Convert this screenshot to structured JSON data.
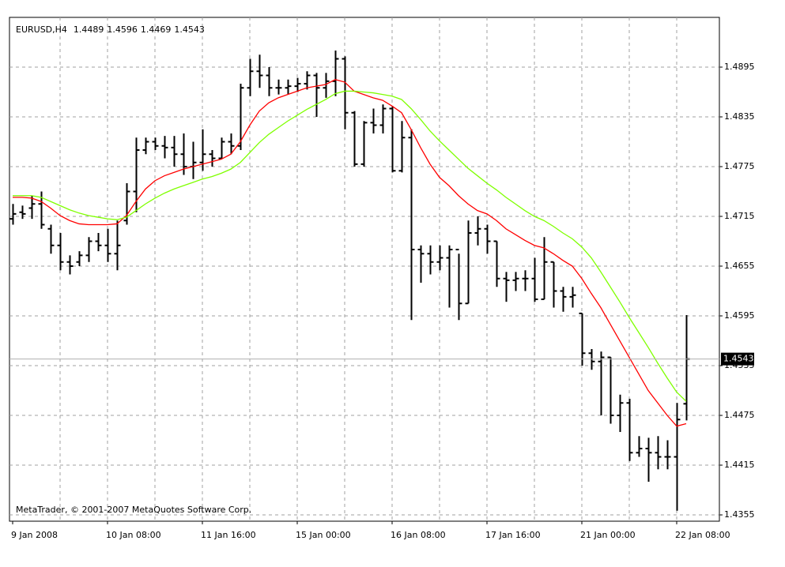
{
  "chart_data": {
    "type": "ohlc",
    "symbol": "EURUSD,H4",
    "footer": "MetaTrader, © 2001-2007 MetaQuotes Software Corp.",
    "categories": [
      "9 Jan 2008",
      null,
      null,
      null,
      null,
      null,
      null,
      null,
      null,
      null,
      "10 Jan 08:00",
      null,
      null,
      null,
      null,
      null,
      null,
      null,
      null,
      null,
      "11 Jan 16:00",
      null,
      null,
      null,
      null,
      null,
      null,
      null,
      null,
      null,
      "15 Jan 00:00",
      null,
      null,
      null,
      null,
      null,
      null,
      null,
      null,
      null,
      "16 Jan 08:00",
      null,
      null,
      null,
      null,
      null,
      null,
      null,
      null,
      null,
      "17 Jan 16:00",
      null,
      null,
      null,
      null,
      null,
      null,
      null,
      null,
      null,
      "21 Jan 00:00",
      null,
      null,
      null,
      null,
      null,
      null,
      null,
      null,
      null,
      "22 Jan 08:00",
      null
    ],
    "open": [
      1.4712,
      1.472,
      1.4725,
      1.473,
      1.47,
      1.468,
      1.466,
      1.466,
      1.4668,
      1.4685,
      1.468,
      1.467,
      1.471,
      1.4745,
      1.4795,
      1.4805,
      1.48,
      1.4798,
      1.479,
      1.4775,
      1.478,
      1.479,
      1.4785,
      1.4805,
      1.48,
      1.487,
      1.489,
      1.4885,
      1.487,
      1.487,
      1.4872,
      1.4875,
      1.4885,
      1.487,
      1.4878,
      1.4905,
      1.484,
      1.4778,
      1.4828,
      1.4825,
      1.4845,
      1.477,
      1.481,
      1.4675,
      1.467,
      1.466,
      1.4665,
      1.4675,
      1.461,
      1.4695,
      1.47,
      1.4685,
      1.464,
      1.4638,
      1.464,
      1.464,
      1.4615,
      1.466,
      1.4625,
      1.4618,
      1.4598,
      1.455,
      1.454,
      1.4545,
      1.4475,
      1.449,
      1.443,
      1.4435,
      1.443,
      1.4425,
      1.4425,
      1.4489
    ],
    "high": [
      1.473,
      1.4728,
      1.474,
      1.4745,
      1.4705,
      1.4695,
      1.4668,
      1.4673,
      1.469,
      1.4695,
      1.47,
      1.471,
      1.4755,
      1.481,
      1.481,
      1.481,
      1.4812,
      1.4812,
      1.4815,
      1.4805,
      1.482,
      1.4795,
      1.481,
      1.4815,
      1.4875,
      1.4905,
      1.491,
      1.4895,
      1.488,
      1.488,
      1.4882,
      1.489,
      1.4888,
      1.4888,
      1.4915,
      1.4908,
      1.4842,
      1.483,
      1.4845,
      1.485,
      1.4848,
      1.483,
      1.482,
      1.468,
      1.468,
      1.468,
      1.468,
      1.467,
      1.471,
      1.4715,
      1.4705,
      1.4685,
      1.4648,
      1.4648,
      1.465,
      1.4665,
      1.469,
      1.466,
      1.463,
      1.463,
      1.4598,
      1.4555,
      1.4552,
      1.4545,
      1.45,
      1.4495,
      1.445,
      1.4448,
      1.445,
      1.4445,
      1.449,
      1.4596
    ],
    "low": [
      1.4705,
      1.4712,
      1.4712,
      1.47,
      1.467,
      1.465,
      1.4645,
      1.4655,
      1.466,
      1.4673,
      1.466,
      1.465,
      1.4705,
      1.472,
      1.479,
      1.4795,
      1.4785,
      1.4775,
      1.4765,
      1.476,
      1.477,
      1.4775,
      1.4785,
      1.479,
      1.4795,
      1.486,
      1.487,
      1.486,
      1.4862,
      1.4862,
      1.4865,
      1.4868,
      1.4835,
      1.4858,
      1.486,
      1.482,
      1.4775,
      1.4775,
      1.4815,
      1.4815,
      1.4768,
      1.4768,
      1.459,
      1.4635,
      1.4645,
      1.465,
      1.4605,
      1.459,
      1.461,
      1.468,
      1.467,
      1.463,
      1.4612,
      1.4625,
      1.4625,
      1.4612,
      1.4615,
      1.4605,
      1.46,
      1.4605,
      1.4535,
      1.453,
      1.4475,
      1.4465,
      1.4455,
      1.442,
      1.4425,
      1.4395,
      1.441,
      1.441,
      1.436,
      1.4469
    ],
    "close": [
      1.4718,
      1.4718,
      1.473,
      1.4705,
      1.468,
      1.466,
      1.4655,
      1.4668,
      1.4685,
      1.468,
      1.467,
      1.468,
      1.4745,
      1.4795,
      1.4805,
      1.48,
      1.4798,
      1.479,
      1.4775,
      1.478,
      1.479,
      1.4785,
      1.4805,
      1.48,
      1.487,
      1.489,
      1.4885,
      1.487,
      1.487,
      1.4872,
      1.4875,
      1.4885,
      1.487,
      1.4878,
      1.4905,
      1.484,
      1.4778,
      1.4828,
      1.4825,
      1.4845,
      1.477,
      1.481,
      1.4675,
      1.467,
      1.466,
      1.4665,
      1.4675,
      1.461,
      1.4695,
      1.47,
      1.4685,
      1.464,
      1.4638,
      1.464,
      1.464,
      1.4615,
      1.466,
      1.4625,
      1.4618,
      1.462,
      1.455,
      1.454,
      1.4545,
      1.4475,
      1.449,
      1.443,
      1.4435,
      1.443,
      1.4425,
      1.4425,
      1.447,
      1.4543
    ],
    "bar_color": "#000000",
    "moving_averages": [
      {
        "color": "#ff0000",
        "values": [
          1.4738,
          1.4738,
          1.4737,
          1.4733,
          1.4725,
          1.4716,
          1.471,
          1.4706,
          1.4705,
          1.4705,
          1.4705,
          1.4706,
          1.4716,
          1.4733,
          1.4748,
          1.4758,
          1.4764,
          1.4768,
          1.4772,
          1.4775,
          1.4778,
          1.4781,
          1.4784,
          1.479,
          1.4805,
          1.4825,
          1.4842,
          1.4852,
          1.4858,
          1.4862,
          1.4866,
          1.487,
          1.4872,
          1.4874,
          1.488,
          1.4877,
          1.4866,
          1.4862,
          1.4858,
          1.4855,
          1.4848,
          1.484,
          1.482,
          1.4798,
          1.4778,
          1.4762,
          1.4752,
          1.474,
          1.473,
          1.4722,
          1.4718,
          1.471,
          1.47,
          1.4693,
          1.4686,
          1.468,
          1.4677,
          1.467,
          1.4662,
          1.4655,
          1.464,
          1.4622,
          1.4605,
          1.4585,
          1.4565,
          1.4545,
          1.4525,
          1.4505,
          1.449,
          1.4475,
          1.4462,
          1.4465
        ]
      },
      {
        "color": "#7fff00",
        "values": [
          1.474,
          1.474,
          1.474,
          1.4738,
          1.4733,
          1.4728,
          1.4723,
          1.4719,
          1.4716,
          1.4714,
          1.4712,
          1.4711,
          1.4714,
          1.4722,
          1.473,
          1.4737,
          1.4743,
          1.4748,
          1.4752,
          1.4756,
          1.476,
          1.4763,
          1.4767,
          1.4772,
          1.478,
          1.4792,
          1.4804,
          1.4814,
          1.4822,
          1.483,
          1.4837,
          1.4844,
          1.485,
          1.4856,
          1.4863,
          1.4866,
          1.4866,
          1.4865,
          1.4864,
          1.4862,
          1.486,
          1.4856,
          1.4845,
          1.4832,
          1.4818,
          1.4806,
          1.4795,
          1.4784,
          1.4773,
          1.4764,
          1.4755,
          1.4747,
          1.4738,
          1.473,
          1.4722,
          1.4715,
          1.471,
          1.4703,
          1.4695,
          1.4688,
          1.4678,
          1.4665,
          1.4648,
          1.463,
          1.4612,
          1.4593,
          1.4575,
          1.4557,
          1.4538,
          1.452,
          1.4503,
          1.4492
        ]
      }
    ],
    "ylim": [
      1.43474,
      1.4955
    ],
    "yticks": [
      1.4355,
      1.4415,
      1.4475,
      1.4535,
      1.4595,
      1.4655,
      1.4715,
      1.4775,
      1.4835,
      1.4895
    ],
    "grid": true
  }
}
